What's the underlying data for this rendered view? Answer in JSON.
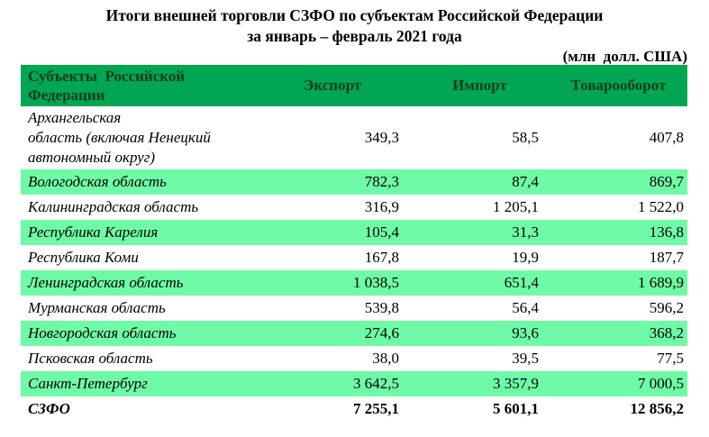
{
  "title": {
    "line1": "Итоги внешней торговли СЗФО по субъектам Российской Федерации",
    "line2": "за январь – февраль 2021 года",
    "units": "(млн  долл. США)"
  },
  "colors": {
    "header_bg": "#00a651",
    "header_text": "#0a3d1e",
    "row_alt_bg": "#6efaa6"
  },
  "table": {
    "columns": {
      "region": "Субъекты  Российской\nФедерации",
      "export": "Экспорт",
      "import": "Импорт",
      "turnover": "Товарооборот"
    },
    "rows": [
      {
        "region": "Архангельская\nобласть (включая Ненецкий\nавтономный округ)",
        "export": "349,3",
        "import": "58,5",
        "turnover": "407,8"
      },
      {
        "region": "Вологодская область",
        "export": "782,3",
        "import": "87,4",
        "turnover": "869,7"
      },
      {
        "region": "Калининградская область",
        "export": "316,9",
        "import": "1 205,1",
        "turnover": "1 522,0"
      },
      {
        "region": "Республика Карелия",
        "export": "105,4",
        "import": "31,3",
        "turnover": "136,8"
      },
      {
        "region": "Республика Коми",
        "export": "167,8",
        "import": "19,9",
        "turnover": "187,7"
      },
      {
        "region": "Ленинградская область",
        "export": "1 038,5",
        "import": "651,4",
        "turnover": "1 689,9"
      },
      {
        "region": "Мурманская область",
        "export": "539,8",
        "import": "56,4",
        "turnover": "596,2"
      },
      {
        "region": "Новгородская область",
        "export": "274,6",
        "import": "93,6",
        "turnover": "368,2"
      },
      {
        "region": "Псковская область",
        "export": "38,0",
        "import": "39,5",
        "turnover": "77,5"
      },
      {
        "region": "Санкт-Петербург",
        "export": "3 642,5",
        "import": "3 357,9",
        "turnover": "7 000,5"
      }
    ],
    "total": {
      "region": "СЗФО",
      "export": "7 255,1",
      "import": "5 601,1",
      "turnover": "12 856,2"
    }
  }
}
